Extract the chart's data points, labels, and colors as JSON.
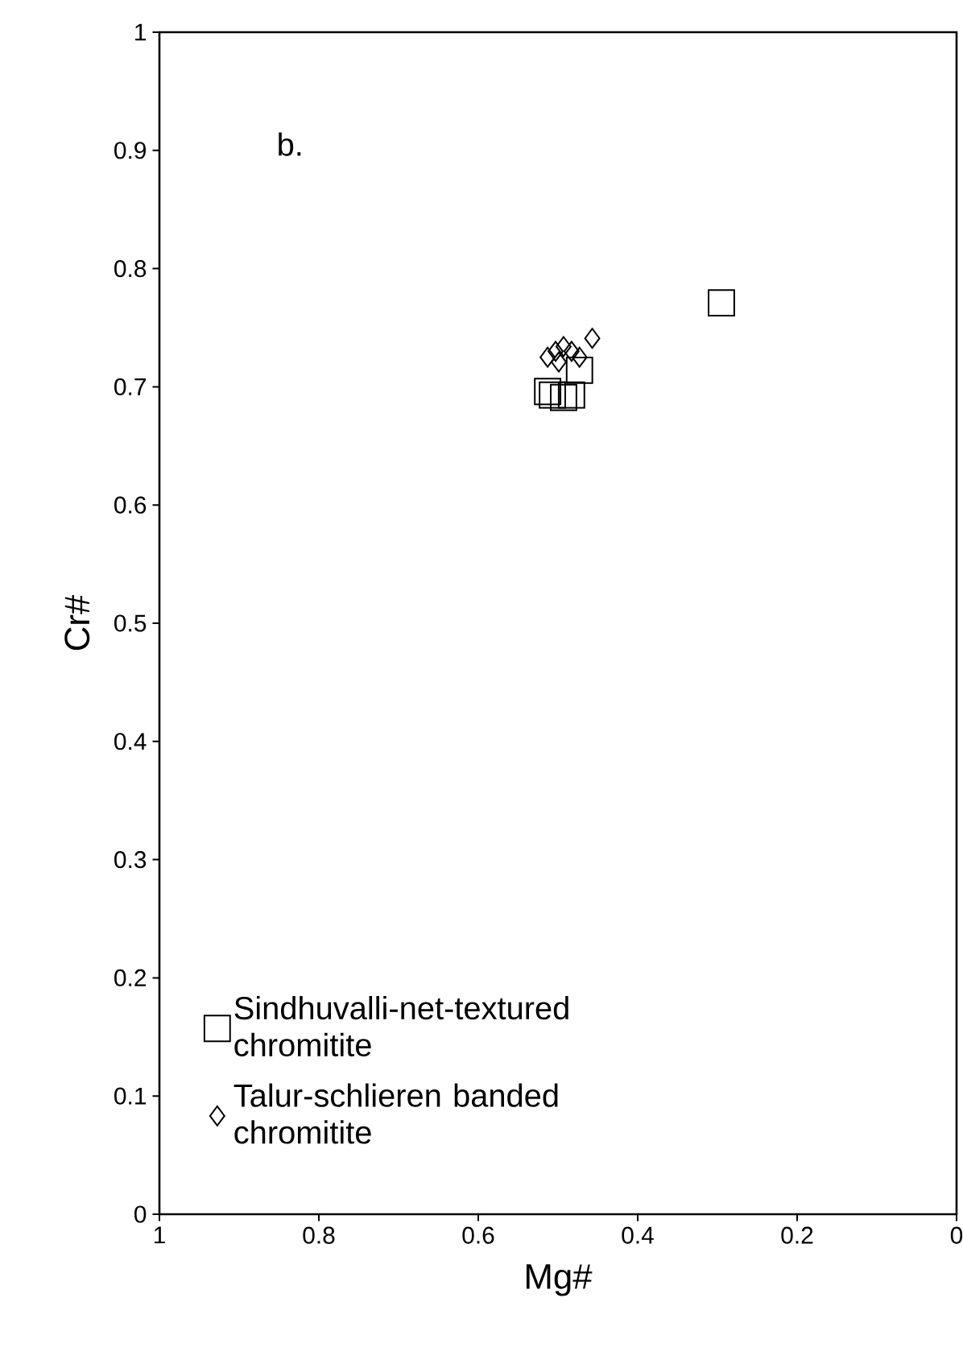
{
  "chart_data": {
    "type": "scatter",
    "xlabel": "Mg#",
    "ylabel": "Cr#",
    "annotations": [
      "b."
    ],
    "xlim": [
      1,
      0
    ],
    "xticks": [
      0,
      0.2,
      0.4,
      0.6,
      0.8,
      1
    ],
    "ylim": [
      0,
      1
    ],
    "yticks": [
      0,
      0.1,
      0.2,
      0.3,
      0.4,
      0.5,
      0.6,
      0.7,
      0.8,
      0.9,
      1
    ],
    "grid": false,
    "legend": "bottom left",
    "series": [
      {
        "name": "Sindhuvalli-net-textured chromitite",
        "color": "#000000",
        "marker": "square",
        "x": [
          0.295,
          0.513,
          0.493,
          0.507,
          0.473,
          0.483
        ],
        "values": [
          0.771,
          0.696,
          0.691,
          0.693,
          0.714,
          0.693
        ]
      },
      {
        "name": "Talur-schlieren banded chromitite",
        "color": "#000000",
        "marker": "diamond",
        "x": [
          0.457,
          0.513,
          0.503,
          0.493,
          0.483,
          0.473,
          0.499
        ],
        "values": [
          0.741,
          0.725,
          0.73,
          0.734,
          0.73,
          0.725,
          0.721
        ]
      }
    ]
  }
}
